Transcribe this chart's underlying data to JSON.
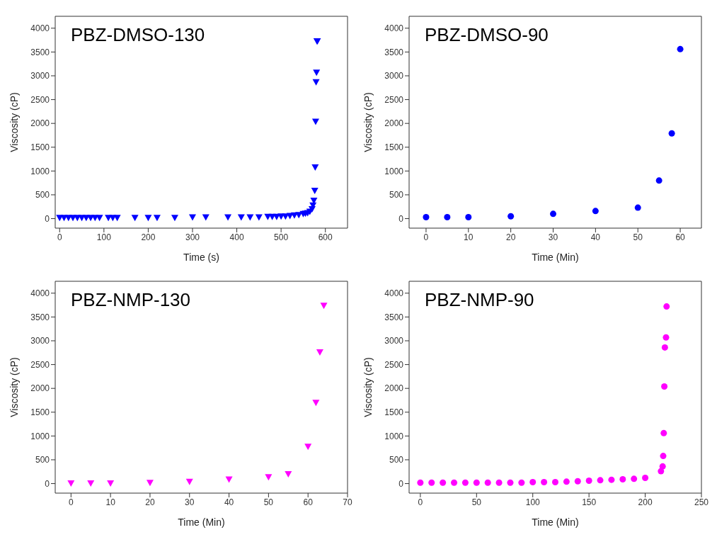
{
  "chart_data": [
    {
      "type": "scatter",
      "title": "PBZ-DMSO-130",
      "xlabel": "Time (s)",
      "ylabel": "Viscosity (cP)",
      "marker": "triangle",
      "grid": false,
      "legend": false,
      "xlim": [
        -10,
        650
      ],
      "xticks": [
        0,
        100,
        200,
        300,
        400,
        500,
        600
      ],
      "ylim": [
        -200,
        4250
      ],
      "yticks": [
        0,
        500,
        1000,
        1500,
        2000,
        2500,
        3000,
        3500,
        4000
      ],
      "x": [
        0,
        10,
        20,
        30,
        40,
        50,
        60,
        70,
        80,
        90,
        110,
        120,
        130,
        170,
        200,
        220,
        260,
        300,
        330,
        380,
        410,
        430,
        450,
        470,
        480,
        490,
        500,
        510,
        520,
        530,
        540,
        550,
        555,
        560,
        565,
        570,
        572,
        574,
        576,
        577,
        578,
        579,
        580,
        581,
        582
      ],
      "series": [
        {
          "color": "#0000ff",
          "values": [
            20,
            20,
            20,
            20,
            20,
            20,
            20,
            20,
            20,
            20,
            20,
            20,
            20,
            20,
            20,
            20,
            20,
            30,
            30,
            30,
            30,
            30,
            30,
            40,
            40,
            40,
            50,
            50,
            60,
            70,
            80,
            100,
            110,
            120,
            150,
            200,
            280,
            380,
            590,
            1080,
            2040,
            2870,
            3070,
            3730,
            3730
          ]
        }
      ]
    },
    {
      "type": "scatter",
      "title": "PBZ-DMSO-90",
      "xlabel": "Time (Min)",
      "ylabel": "Viscosity (cP)",
      "marker": "circle",
      "grid": false,
      "legend": false,
      "xlim": [
        -4,
        65
      ],
      "xticks": [
        0,
        10,
        20,
        30,
        40,
        50,
        60
      ],
      "ylim": [
        -200,
        4250
      ],
      "yticks": [
        0,
        500,
        1000,
        1500,
        2000,
        2500,
        3000,
        3500,
        4000
      ],
      "x": [
        0,
        5,
        10,
        20,
        30,
        40,
        50,
        55,
        58,
        60
      ],
      "series": [
        {
          "color": "#0000ff",
          "values": [
            30,
            30,
            30,
            50,
            100,
            160,
            230,
            800,
            1790,
            3560
          ]
        }
      ]
    },
    {
      "type": "scatter",
      "title": "PBZ-NMP-130",
      "xlabel": "Time (Min)",
      "ylabel": "Viscosity (cP)",
      "marker": "triangle",
      "grid": false,
      "legend": false,
      "xlim": [
        -4,
        70
      ],
      "xticks": [
        0,
        10,
        20,
        30,
        40,
        50,
        60,
        70
      ],
      "ylim": [
        -200,
        4250
      ],
      "yticks": [
        0,
        500,
        1000,
        1500,
        2000,
        2500,
        3000,
        3500,
        4000
      ],
      "x": [
        0,
        5,
        10,
        20,
        30,
        40,
        50,
        55,
        60,
        62,
        63,
        64
      ],
      "series": [
        {
          "color": "#ff00ff",
          "values": [
            10,
            10,
            10,
            20,
            40,
            90,
            140,
            200,
            780,
            1700,
            2760,
            3740
          ]
        }
      ]
    },
    {
      "type": "scatter",
      "title": "PBZ-NMP-90",
      "xlabel": "Time (Min)",
      "ylabel": "Viscosity (cP)",
      "marker": "circle",
      "grid": false,
      "legend": false,
      "xlim": [
        -10,
        250
      ],
      "xticks": [
        0,
        50,
        100,
        150,
        200,
        250
      ],
      "ylim": [
        -200,
        4250
      ],
      "yticks": [
        0,
        500,
        1000,
        1500,
        2000,
        2500,
        3000,
        3500,
        4000
      ],
      "x": [
        0,
        10,
        20,
        30,
        40,
        50,
        60,
        70,
        80,
        90,
        100,
        110,
        120,
        130,
        140,
        150,
        160,
        170,
        180,
        190,
        200,
        214,
        215.5,
        216,
        216.5,
        217,
        217.5,
        218.5,
        219
      ],
      "series": [
        {
          "color": "#ff00ff",
          "values": [
            20,
            20,
            20,
            20,
            20,
            20,
            20,
            20,
            20,
            20,
            30,
            30,
            30,
            40,
            50,
            60,
            70,
            80,
            90,
            100,
            120,
            260,
            360,
            580,
            1060,
            2040,
            2860,
            3070,
            3720
          ]
        }
      ]
    }
  ]
}
